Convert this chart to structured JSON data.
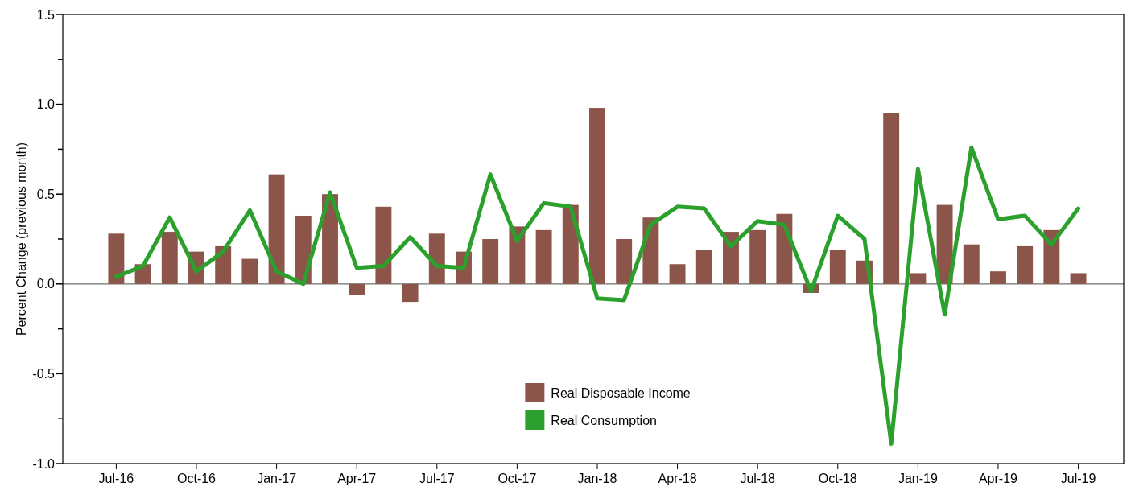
{
  "chart_data": {
    "type": "bar",
    "ylabel": "Percent Change (previous month)",
    "categories": [
      "Jul-16",
      null,
      null,
      "Oct-16",
      null,
      null,
      "Jan-17",
      null,
      null,
      "Apr-17",
      null,
      null,
      "Jul-17",
      null,
      null,
      "Oct-17",
      null,
      null,
      "Jan-18",
      null,
      null,
      "Apr-18",
      null,
      null,
      "Jul-18",
      null,
      null,
      "Oct-18",
      null,
      null,
      "Jan-19",
      null,
      null,
      "Apr-19",
      null,
      null,
      "Jul-19"
    ],
    "series": [
      {
        "name": "Real Disposable Income",
        "color": "#8b5649",
        "values": [
          0.28,
          0.11,
          0.29,
          0.18,
          0.21,
          0.14,
          0.61,
          0.38,
          0.5,
          -0.06,
          0.43,
          -0.1,
          0.28,
          0.18,
          0.25,
          0.32,
          0.3,
          0.44,
          0.98,
          0.25,
          0.37,
          0.11,
          0.19,
          0.29,
          0.3,
          0.39,
          -0.05,
          0.19,
          0.13,
          0.95,
          0.06,
          0.44,
          0.22,
          0.07,
          0.21,
          0.3,
          0.06
        ]
      },
      {
        "name": "Real Consumption",
        "type": "line",
        "color": "#2ca02c",
        "values": [
          0.04,
          0.1,
          0.37,
          0.07,
          0.18,
          0.41,
          0.07,
          0.0,
          0.51,
          0.09,
          0.1,
          0.26,
          0.1,
          0.09,
          0.61,
          0.24,
          0.45,
          0.43,
          -0.08,
          -0.09,
          0.33,
          0.43,
          0.42,
          0.21,
          0.35,
          0.33,
          -0.04,
          0.38,
          0.25,
          -0.89,
          0.64,
          -0.17,
          0.76,
          0.36,
          0.38,
          0.22,
          0.42
        ]
      }
    ],
    "ylim": [
      -1.0,
      1.5
    ],
    "yticks": [
      {
        "value": -1.0,
        "label": "-1.0"
      },
      {
        "value": -0.5,
        "label": "-0.5"
      },
      {
        "value": 0,
        "label": "0.0"
      },
      {
        "value": 0.5,
        "label": "0.5"
      },
      {
        "value": 1.0,
        "label": "1.0"
      },
      {
        "value": 1.5,
        "label": "1.5"
      }
    ],
    "ref_lines": [
      {
        "axis": "y",
        "value": 0,
        "color": "#707070"
      }
    ],
    "legend": "bottom",
    "grid": false,
    "marker": "none",
    "line_style": "solid"
  }
}
